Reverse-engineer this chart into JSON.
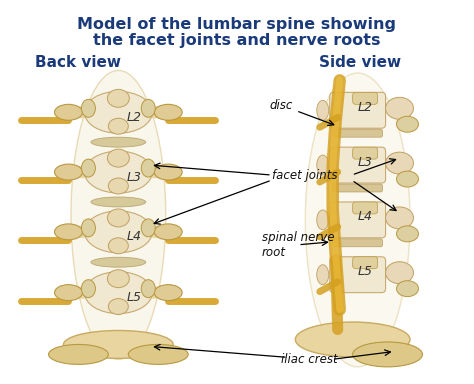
{
  "title_line1": "Model of the lumbar spine showing",
  "title_line2": "the facet joints and nerve roots",
  "title_color": "#1a3a7a",
  "title_fontsize": 11.5,
  "title_fontweight": "bold",
  "bg_color": "#ffffff",
  "left_header": "Back view",
  "right_header": "Side view",
  "header_color": "#1a3a7a",
  "header_fontsize": 11,
  "header_fontweight": "bold",
  "bone_light": "#f0e8cc",
  "bone_mid": "#e8d9a8",
  "bone_dark": "#d4bc78",
  "nerve_color": "#d4a020",
  "annotation_color": "#111111",
  "annotation_fontsize": 8.5,
  "figure_width": 4.74,
  "figure_height": 3.84,
  "dpi": 100
}
